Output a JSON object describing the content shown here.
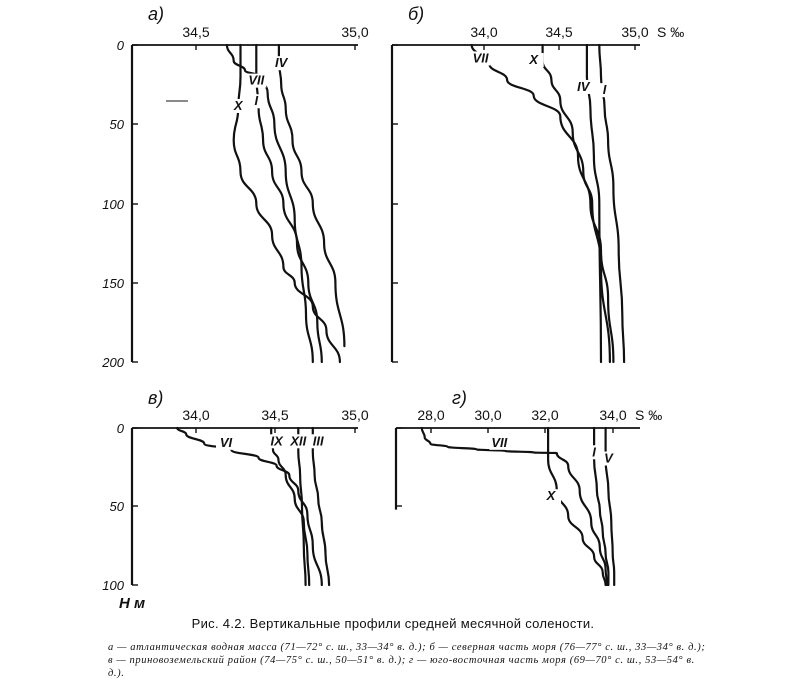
{
  "chart_data": {
    "a": {
      "type": "line",
      "panel_label": "а)",
      "x_ticks": [
        "34,5",
        "35,0"
      ],
      "xlim": [
        34.0,
        35.0
      ],
      "y_ticks": [
        "0",
        "50",
        "100",
        "150",
        "200"
      ],
      "ylim": [
        0,
        200
      ],
      "series": [
        {
          "name": "IV",
          "x": [
            34.65,
            34.65,
            34.66,
            34.68,
            34.71,
            34.75,
            34.8,
            34.85,
            34.9,
            34.94
          ],
          "y": [
            0,
            10,
            25,
            40,
            60,
            80,
            100,
            125,
            150,
            190
          ]
        },
        {
          "name": "VII",
          "x": [
            34.42,
            34.45,
            34.5,
            34.57,
            34.6,
            34.63,
            34.68,
            34.72,
            34.75,
            34.77,
            34.8
          ],
          "y": [
            0,
            10,
            16,
            20,
            30,
            50,
            80,
            110,
            140,
            170,
            200
          ]
        },
        {
          "name": "I",
          "x": [
            34.55,
            34.55,
            34.56,
            34.58,
            34.62,
            34.67,
            34.73,
            34.78,
            34.82,
            34.84
          ],
          "y": [
            0,
            20,
            40,
            60,
            80,
            100,
            125,
            150,
            175,
            200
          ]
        },
        {
          "name": "X",
          "x": [
            34.48,
            34.48,
            34.47,
            34.45,
            34.48,
            34.55,
            34.62,
            34.67,
            34.72,
            34.8,
            34.86,
            34.92
          ],
          "y": [
            0,
            20,
            40,
            60,
            80,
            100,
            120,
            140,
            150,
            165,
            180,
            200
          ]
        }
      ],
      "labels": [
        {
          "text": "IV",
          "x": 34.66,
          "y": 14
        },
        {
          "text": "VII",
          "x": 34.55,
          "y": 25
        },
        {
          "text": "I",
          "x": 34.55,
          "y": 38
        },
        {
          "text": "X",
          "x": 34.47,
          "y": 41
        }
      ]
    },
    "b": {
      "type": "line",
      "panel_label": "б)",
      "x_ticks": [
        "34,0",
        "34,5",
        "35,0"
      ],
      "x_unit": "S ‰",
      "xlim": [
        33.6,
        35.0
      ],
      "y_ticks": [
        "0",
        "50",
        "100",
        "150",
        "200"
      ],
      "ylim": [
        0,
        200
      ],
      "series": [
        {
          "name": "VII",
          "x": [
            34.05,
            34.15,
            34.25,
            34.4,
            34.55,
            34.65,
            34.72,
            34.78,
            34.82,
            34.85
          ],
          "y": [
            0,
            12,
            22,
            32,
            45,
            70,
            100,
            130,
            160,
            200
          ]
        },
        {
          "name": "X",
          "x": [
            34.45,
            34.45,
            34.5,
            34.55,
            34.62,
            34.68,
            34.73,
            34.78,
            34.83
          ],
          "y": [
            0,
            10,
            22,
            35,
            55,
            80,
            100,
            140,
            200
          ]
        },
        {
          "name": "IV",
          "x": [
            34.7,
            34.7,
            34.72,
            34.74,
            34.77,
            34.78
          ],
          "y": [
            0,
            20,
            40,
            70,
            100,
            200
          ]
        },
        {
          "name": "I",
          "x": [
            34.77,
            34.78,
            34.8,
            34.82,
            34.85,
            34.88,
            34.9,
            34.91
          ],
          "y": [
            0,
            20,
            40,
            60,
            90,
            130,
            170,
            200
          ]
        }
      ],
      "labels": [
        {
          "text": "VII",
          "x": 34.1,
          "y": 11
        },
        {
          "text": "X",
          "x": 34.4,
          "y": 12
        },
        {
          "text": "IV",
          "x": 34.68,
          "y": 29
        },
        {
          "text": "I",
          "x": 34.8,
          "y": 31
        }
      ]
    },
    "v": {
      "type": "line",
      "panel_label": "в)",
      "x_ticks": [
        "34,0",
        "34,5",
        "35,0"
      ],
      "xlim": [
        33.75,
        35.0
      ],
      "y_ticks": [
        "0",
        "50",
        "100"
      ],
      "ylim": [
        0,
        100
      ],
      "series": [
        {
          "name": "VI",
          "x": [
            34.0,
            34.05,
            34.15,
            34.3,
            34.45,
            34.55,
            34.62,
            34.67,
            34.72,
            34.75,
            34.8
          ],
          "y": [
            0,
            4,
            10,
            14,
            19,
            24,
            30,
            40,
            55,
            75,
            100
          ]
        },
        {
          "name": "IX",
          "x": [
            34.52,
            34.52,
            34.53,
            34.56,
            34.6,
            34.65,
            34.7,
            34.72,
            34.73
          ],
          "y": [
            0,
            7,
            14,
            20,
            30,
            45,
            60,
            80,
            100
          ]
        },
        {
          "name": "XII",
          "x": [
            34.67,
            34.67,
            34.68,
            34.69,
            34.7,
            34.71
          ],
          "y": [
            0,
            15,
            30,
            50,
            75,
            100
          ]
        },
        {
          "name": "III",
          "x": [
            34.75,
            34.75,
            34.76,
            34.78,
            34.8,
            34.82,
            34.84
          ],
          "y": [
            0,
            15,
            30,
            45,
            60,
            80,
            100
          ]
        }
      ],
      "labels": [
        {
          "text": "VI",
          "x": 34.27,
          "y": 12
        },
        {
          "text": "IX",
          "x": 34.55,
          "y": 11
        },
        {
          "text": "XII",
          "x": 34.67,
          "y": 11
        },
        {
          "text": "III",
          "x": 34.78,
          "y": 11
        }
      ]
    },
    "g": {
      "type": "line",
      "panel_label": "г)",
      "x_ticks": [
        "28,0",
        "30,0",
        "32,0",
        "34,0"
      ],
      "x_unit": "S ‰",
      "xlim": [
        27.0,
        35.5
      ],
      "y_ticks": [
        "0",
        "50"
      ],
      "ylim": [
        0,
        50
      ],
      "series": [
        {
          "name": "VII",
          "x": [
            27.9,
            28.0,
            28.2,
            28.8,
            29.8,
            30.8,
            31.8,
            32.6,
            33.0,
            33.4,
            33.8,
            34.1,
            34.3,
            34.35
          ],
          "y": [
            0,
            3,
            5,
            6,
            6.8,
            7.3,
            7.8,
            8,
            12,
            20,
            30,
            38,
            45,
            50
          ]
        },
        {
          "name": "X",
          "x": [
            32.3,
            32.3,
            32.6,
            33.0,
            33.5,
            33.9,
            34.2,
            34.3
          ],
          "y": [
            0,
            10,
            20,
            28,
            35,
            41,
            46,
            50
          ]
        },
        {
          "name": "I",
          "x": [
            33.9,
            33.9,
            34.0,
            34.1,
            34.2,
            34.3,
            34.4,
            34.4
          ],
          "y": [
            0,
            10,
            20,
            26,
            33,
            40,
            46,
            50
          ]
        },
        {
          "name": "V",
          "x": [
            34.3,
            34.3,
            34.4,
            34.5,
            34.55,
            34.6,
            34.6
          ],
          "y": [
            0,
            10,
            20,
            30,
            40,
            46,
            50
          ]
        }
      ],
      "labels": [
        {
          "text": "VII",
          "x": 30.6,
          "y": 6
        },
        {
          "text": "X",
          "x": 32.4,
          "y": 23
        },
        {
          "text": "I",
          "x": 33.9,
          "y": 9
        },
        {
          "text": "V",
          "x": 34.4,
          "y": 11
        }
      ]
    },
    "y_unit": "Н м"
  },
  "caption": {
    "title": "Рис. 4.2. Вертикальные профили средней месячной солености.",
    "body": "а — атлантическая водная масса (71—72° с. ш., 33—34° в. д.); б — северная часть моря (76—77° с. ш., 33—34° в. д.); в — приновоземельский район (74—75° с. ш., 50—51° в. д.); г — юго-восточная часть моря (69—70° с. ш., 53—54° в. д.)."
  }
}
